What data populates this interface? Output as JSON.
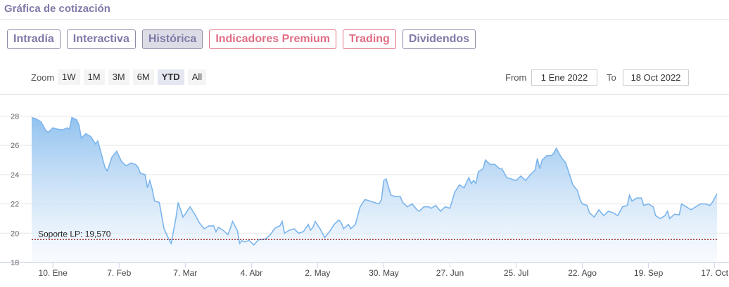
{
  "header": {
    "title": "Gráfica de cotización"
  },
  "tabs": [
    {
      "label": "Intradía"
    },
    {
      "label": "Interactiva"
    },
    {
      "label": "Histórica"
    },
    {
      "label": "Indicadores Premium"
    },
    {
      "label": "Trading"
    },
    {
      "label": "Dividendos"
    }
  ],
  "range_selector": {
    "zoom_label": "Zoom",
    "buttons": [
      "1W",
      "1M",
      "3M",
      "6M",
      "YTD",
      "All"
    ],
    "selected": "YTD",
    "from_label": "From",
    "from_value": "1 Ene 2022",
    "to_label": "To",
    "to_value": "18 Oct 2022"
  },
  "colors": {
    "line": "#7cb5ec",
    "area_top": "#8cbfee",
    "support_line": "#8b0000",
    "tab_text": "#7f7aa8",
    "tab_pink": "#e06e85"
  },
  "chart_data": {
    "type": "area",
    "ylim": [
      18,
      28.5
    ],
    "yticks": [
      18,
      20,
      22,
      24,
      26,
      28
    ],
    "xticks": [
      "10. Ene",
      "7. Feb",
      "7. Mar",
      "4. Abr",
      "2. May",
      "30. May",
      "27. Jun",
      "25. Jul",
      "22. Ago",
      "19. Sep",
      "17. Oct"
    ],
    "xtick_day_index": [
      9,
      37,
      65,
      93,
      121,
      149,
      177,
      205,
      233,
      261,
      289
    ],
    "xlim_days": [
      0,
      290
    ],
    "annotation": {
      "label": "Soporte LP: 19,570",
      "value": 19.57
    },
    "series": [
      {
        "points": [
          [
            0,
            27.9
          ],
          [
            2,
            27.8
          ],
          [
            4,
            27.6
          ],
          [
            6,
            27.0
          ],
          [
            7,
            26.9
          ],
          [
            9,
            27.2
          ],
          [
            11,
            27.1
          ],
          [
            13,
            27.05
          ],
          [
            15,
            27.2
          ],
          [
            16,
            27.1
          ],
          [
            17,
            27.9
          ],
          [
            19,
            27.75
          ],
          [
            20,
            27.4
          ],
          [
            21,
            26.5
          ],
          [
            23,
            26.8
          ],
          [
            25,
            26.6
          ],
          [
            27,
            26.1
          ],
          [
            28,
            26.3
          ],
          [
            30,
            25.1
          ],
          [
            31,
            24.5
          ],
          [
            32,
            24.25
          ],
          [
            34,
            25.2
          ],
          [
            36,
            25.6
          ],
          [
            38,
            24.9
          ],
          [
            40,
            24.6
          ],
          [
            42,
            24.8
          ],
          [
            44,
            24.7
          ],
          [
            45,
            24.5
          ],
          [
            46,
            24.1
          ],
          [
            48,
            24.0
          ],
          [
            49,
            23.1
          ],
          [
            50,
            23.6
          ],
          [
            51,
            23.0
          ],
          [
            52,
            22.2
          ],
          [
            54,
            22.1
          ],
          [
            56,
            20.3
          ],
          [
            58,
            19.6
          ],
          [
            59,
            19.3
          ],
          [
            61,
            21.0
          ],
          [
            62,
            22.1
          ],
          [
            64,
            21.1
          ],
          [
            65,
            21.3
          ],
          [
            67,
            21.8
          ],
          [
            69,
            21.3
          ],
          [
            71,
            20.7
          ],
          [
            73,
            20.3
          ],
          [
            75,
            20.5
          ],
          [
            77,
            20.5
          ],
          [
            78,
            20.1
          ],
          [
            79,
            20.4
          ],
          [
            81,
            20.2
          ],
          [
            83,
            19.9
          ],
          [
            84,
            20.3
          ],
          [
            85,
            20.8
          ],
          [
            87,
            20.2
          ],
          [
            88,
            19.3
          ],
          [
            89,
            19.5
          ],
          [
            90,
            19.4
          ],
          [
            92,
            19.5
          ],
          [
            94,
            19.2
          ],
          [
            96,
            19.55
          ],
          [
            99,
            19.6
          ],
          [
            101,
            19.9
          ],
          [
            103,
            20.35
          ],
          [
            105,
            20.5
          ],
          [
            106,
            20.8
          ],
          [
            107,
            20.0
          ],
          [
            109,
            20.2
          ],
          [
            111,
            20.3
          ],
          [
            113,
            20.0
          ],
          [
            115,
            20.1
          ],
          [
            117,
            20.6
          ],
          [
            118,
            20.2
          ],
          [
            119,
            20.4
          ],
          [
            120,
            20.8
          ],
          [
            122,
            20.3
          ],
          [
            124,
            19.7
          ],
          [
            126,
            20.1
          ],
          [
            128,
            20.6
          ],
          [
            130,
            20.9
          ],
          [
            131,
            20.7
          ],
          [
            132,
            20.3
          ],
          [
            134,
            20.6
          ],
          [
            135,
            20.3
          ],
          [
            137,
            20.6
          ],
          [
            139,
            21.8
          ],
          [
            141,
            22.3
          ],
          [
            143,
            22.2
          ],
          [
            145,
            22.1
          ],
          [
            147,
            22.0
          ],
          [
            148,
            22.3
          ],
          [
            149,
            23.6
          ],
          [
            150,
            23.7
          ],
          [
            152,
            22.6
          ],
          [
            154,
            22.5
          ],
          [
            156,
            22.5
          ],
          [
            157,
            22.1
          ],
          [
            159,
            21.8
          ],
          [
            161,
            22.0
          ],
          [
            163,
            21.6
          ],
          [
            164,
            21.5
          ],
          [
            166,
            21.8
          ],
          [
            168,
            21.8
          ],
          [
            169,
            21.7
          ],
          [
            171,
            21.9
          ],
          [
            173,
            21.5
          ],
          [
            175,
            21.8
          ],
          [
            177,
            21.7
          ],
          [
            179,
            22.8
          ],
          [
            181,
            23.3
          ],
          [
            183,
            23.1
          ],
          [
            185,
            23.8
          ],
          [
            186,
            23.4
          ],
          [
            187,
            23.6
          ],
          [
            188,
            23.4
          ],
          [
            189,
            24.2
          ],
          [
            191,
            24.4
          ],
          [
            192,
            25.0
          ],
          [
            194,
            24.7
          ],
          [
            196,
            24.7
          ],
          [
            198,
            24.4
          ],
          [
            199,
            24.4
          ],
          [
            201,
            23.8
          ],
          [
            203,
            23.7
          ],
          [
            205,
            23.6
          ],
          [
            207,
            23.9
          ],
          [
            209,
            23.6
          ],
          [
            211,
            24.0
          ],
          [
            213,
            24.3
          ],
          [
            214,
            25.1
          ],
          [
            215,
            24.4
          ],
          [
            216,
            25.0
          ],
          [
            218,
            25.3
          ],
          [
            220,
            25.3
          ],
          [
            221,
            25.5
          ],
          [
            222,
            25.8
          ],
          [
            224,
            25.2
          ],
          [
            226,
            24.8
          ],
          [
            228,
            23.8
          ],
          [
            229,
            23.3
          ],
          [
            231,
            22.9
          ],
          [
            232,
            22.3
          ],
          [
            233,
            22.0
          ],
          [
            235,
            21.9
          ],
          [
            236,
            21.4
          ],
          [
            238,
            21.1
          ],
          [
            240,
            21.6
          ],
          [
            242,
            21.2
          ],
          [
            244,
            21.5
          ],
          [
            246,
            21.4
          ],
          [
            248,
            21.2
          ],
          [
            250,
            21.8
          ],
          [
            252,
            21.9
          ],
          [
            253,
            22.6
          ],
          [
            254,
            22.2
          ],
          [
            256,
            22.4
          ],
          [
            258,
            22.4
          ],
          [
            259,
            21.9
          ],
          [
            261,
            22.0
          ],
          [
            263,
            21.8
          ],
          [
            264,
            21.2
          ],
          [
            266,
            21.0
          ],
          [
            268,
            21.2
          ],
          [
            269,
            21.5
          ],
          [
            270,
            21.0
          ],
          [
            272,
            21.3
          ],
          [
            274,
            21.25
          ],
          [
            275,
            22.0
          ],
          [
            277,
            21.8
          ],
          [
            279,
            21.6
          ],
          [
            281,
            21.8
          ],
          [
            283,
            22.0
          ],
          [
            285,
            22.0
          ],
          [
            287,
            21.9
          ],
          [
            288,
            22.1
          ],
          [
            290,
            22.7
          ]
        ]
      }
    ]
  }
}
